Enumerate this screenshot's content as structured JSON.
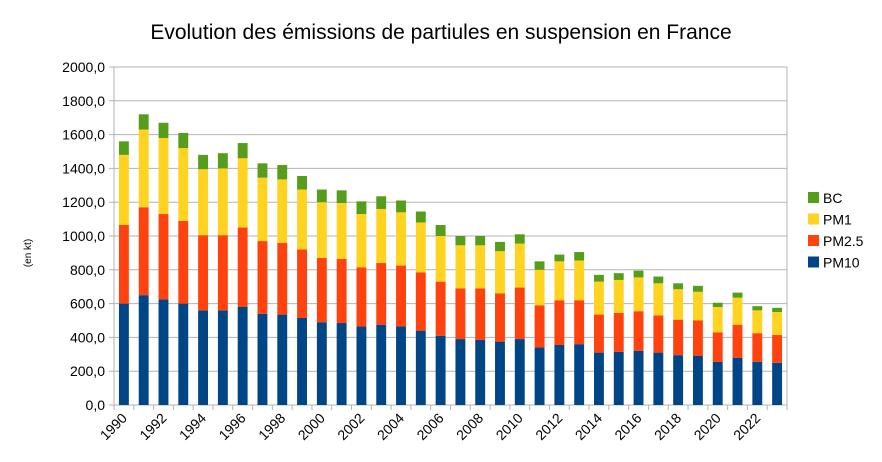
{
  "chart_data": {
    "type": "bar",
    "stacked": true,
    "title": "Evolution des émissions de partiules en suspension en France",
    "xlabel": "",
    "ylabel": "(en kt)",
    "ylim": [
      0,
      2000
    ],
    "yticks": [
      "0,0",
      "200,0",
      "400,0",
      "600,0",
      "800,0",
      "1000,0",
      "1200,0",
      "1400,0",
      "1600,0",
      "1800,0",
      "2000,0"
    ],
    "grid": true,
    "legend_position": "right",
    "categories": [
      "1990",
      "1991",
      "1992",
      "1993",
      "1994",
      "1995",
      "1996",
      "1997",
      "1998",
      "1999",
      "2000",
      "2001",
      "2002",
      "2003",
      "2004",
      "2005",
      "2006",
      "2007",
      "2008",
      "2009",
      "2010",
      "2011",
      "2012",
      "2013",
      "2014",
      "2015",
      "2016",
      "2017",
      "2018",
      "2019",
      "2020",
      "2021",
      "2022",
      "2023"
    ],
    "xtick_labels_shown": [
      "1990",
      "1992",
      "1994",
      "1996",
      "1998",
      "2000",
      "2002",
      "2004",
      "2006",
      "2008",
      "2010",
      "2012",
      "2014",
      "2016",
      "2018",
      "2020",
      "2022"
    ],
    "series": [
      {
        "name": "PM10",
        "color": "#004586",
        "values": [
          600,
          650,
          625,
          600,
          560,
          560,
          580,
          540,
          535,
          515,
          490,
          485,
          465,
          475,
          465,
          440,
          410,
          390,
          385,
          375,
          390,
          340,
          355,
          360,
          310,
          315,
          320,
          310,
          295,
          290,
          255,
          280,
          255,
          250
        ]
      },
      {
        "name": "PM2.5",
        "color": "#ff420e",
        "values": [
          465,
          520,
          505,
          490,
          445,
          445,
          470,
          430,
          425,
          405,
          380,
          380,
          350,
          365,
          360,
          345,
          320,
          300,
          305,
          285,
          305,
          250,
          265,
          260,
          225,
          230,
          235,
          220,
          210,
          210,
          175,
          195,
          170,
          165
        ]
      },
      {
        "name": "PM1",
        "color": "#ffd320",
        "values": [
          415,
          460,
          450,
          430,
          390,
          395,
          410,
          375,
          375,
          355,
          330,
          330,
          315,
          320,
          315,
          295,
          270,
          255,
          255,
          250,
          260,
          210,
          230,
          235,
          195,
          195,
          200,
          190,
          180,
          170,
          150,
          160,
          135,
          135
        ]
      },
      {
        "name": "BC",
        "color": "#579d1c",
        "values": [
          80,
          90,
          90,
          90,
          85,
          90,
          90,
          85,
          85,
          80,
          75,
          75,
          75,
          75,
          70,
          65,
          65,
          55,
          55,
          55,
          55,
          50,
          40,
          50,
          40,
          40,
          40,
          40,
          35,
          35,
          25,
          30,
          25,
          25
        ]
      }
    ]
  }
}
